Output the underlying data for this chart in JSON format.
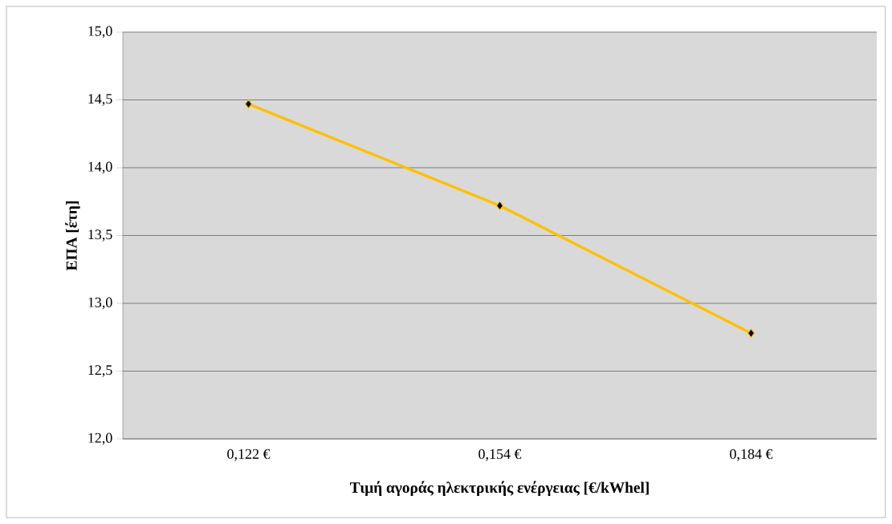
{
  "chart_data": {
    "type": "line",
    "xlabel": "Τιμή αγοράς ηλεκτρικής ενέργειας [€/kWhel]",
    "ylabel": "ΕΠΑ [έτη]",
    "categories": [
      "0,122 €",
      "0,154 €",
      "0,184 €"
    ],
    "series": [
      {
        "color": "#ffc000",
        "values": [
          14.47,
          13.72,
          12.78
        ]
      }
    ],
    "ylim": [
      12,
      15
    ],
    "yticks": [
      {
        "value": 12,
        "label": "12,0"
      },
      {
        "value": 12.5,
        "label": "12,5"
      },
      {
        "value": 13,
        "label": "13,0"
      },
      {
        "value": 13.5,
        "label": "13,5"
      },
      {
        "value": 14,
        "label": "14,0"
      },
      {
        "value": 14.5,
        "label": "14,5"
      },
      {
        "value": 15,
        "label": "15,0"
      }
    ],
    "grid": "y",
    "marker": "diamond",
    "line_style": "solid"
  }
}
